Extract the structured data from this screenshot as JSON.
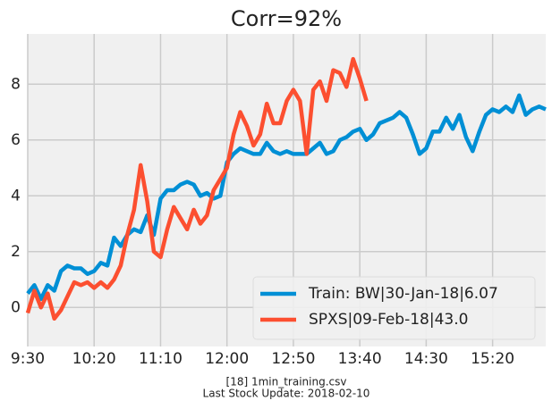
{
  "chart_data": {
    "type": "line",
    "title": "Corr=92%",
    "footer": [
      "[18] 1min_training.csv",
      "Last Stock Update: 2018-02-10"
    ],
    "x": [
      0,
      5,
      10,
      15,
      20,
      25,
      30,
      35,
      40,
      45,
      50,
      55,
      60,
      65,
      70,
      75,
      80,
      85,
      90,
      95,
      100,
      105,
      110,
      115,
      120,
      125,
      130,
      135,
      140,
      145,
      150,
      155,
      160,
      165,
      170,
      175,
      180,
      185,
      190,
      195,
      200,
      205,
      210,
      215,
      220,
      225,
      230,
      235,
      240,
      245,
      250,
      255,
      260,
      265,
      270,
      275,
      280,
      285,
      290,
      295,
      300,
      305,
      310,
      315,
      320,
      325,
      330,
      335,
      340,
      345,
      350,
      355,
      360,
      365,
      370,
      375,
      380,
      385,
      390
    ],
    "series": [
      {
        "name": "Train: BW|30-Jan-18|6.07",
        "color": "#008fd5",
        "values": [
          0.5,
          0.8,
          0.3,
          0.8,
          0.6,
          1.3,
          1.5,
          1.4,
          1.4,
          1.2,
          1.3,
          1.6,
          1.5,
          2.5,
          2.2,
          2.6,
          2.8,
          2.7,
          3.3,
          2.6,
          3.9,
          4.2,
          4.2,
          4.4,
          4.5,
          4.4,
          4.0,
          4.1,
          3.9,
          4.0,
          5.2,
          5.5,
          5.7,
          5.6,
          5.5,
          5.5,
          5.9,
          5.6,
          5.5,
          5.6,
          5.5,
          5.5,
          5.5,
          5.7,
          5.9,
          5.5,
          5.6,
          6.0,
          6.1,
          6.3,
          6.4,
          6.0,
          6.2,
          6.6,
          6.7,
          6.8,
          7.0,
          6.8,
          6.2,
          5.5,
          5.7,
          6.3,
          6.3,
          6.8,
          6.4,
          6.9,
          6.1,
          5.6,
          6.3,
          6.9,
          7.1,
          7.0,
          7.2,
          7.0,
          7.6,
          6.9,
          7.1,
          7.2,
          7.1
        ]
      },
      {
        "name": "SPXS|09-Feb-18|43.0",
        "color": "#fc4f30",
        "values": [
          -0.2,
          0.6,
          0.0,
          0.5,
          -0.4,
          -0.1,
          0.4,
          0.9,
          0.8,
          0.9,
          0.7,
          0.9,
          0.7,
          1.0,
          1.5,
          2.6,
          3.5,
          5.1,
          3.8,
          2.0,
          1.8,
          2.8,
          3.6,
          3.2,
          2.8,
          3.5,
          3.0,
          3.3,
          4.2,
          4.6,
          5.0,
          6.2,
          7.0,
          6.5,
          5.8,
          6.2,
          7.3,
          6.6,
          6.6,
          7.4,
          7.8,
          7.4,
          5.5,
          7.8,
          8.1,
          7.4,
          8.5,
          8.4,
          7.9,
          8.9,
          8.2,
          7.4,
          null,
          null,
          null,
          null,
          null,
          null,
          null,
          null,
          null,
          null,
          null,
          null,
          null,
          null,
          null,
          null,
          null,
          null,
          null,
          null,
          null,
          null,
          null,
          null,
          null,
          null,
          null
        ]
      }
    ],
    "xlim": [
      0,
      390
    ],
    "xticks": [
      {
        "value": 0,
        "label": "9:30"
      },
      {
        "value": 50,
        "label": "10:20"
      },
      {
        "value": 100,
        "label": "11:10"
      },
      {
        "value": 150,
        "label": "12:00"
      },
      {
        "value": 200,
        "label": "12:50"
      },
      {
        "value": 250,
        "label": "13:40"
      },
      {
        "value": 300,
        "label": "14:30"
      },
      {
        "value": 350,
        "label": "15:20"
      }
    ],
    "ylim": [
      -1.4,
      9.8
    ],
    "yticks": [
      0,
      2,
      4,
      6,
      8
    ],
    "grid": true,
    "legend": "lower right"
  }
}
